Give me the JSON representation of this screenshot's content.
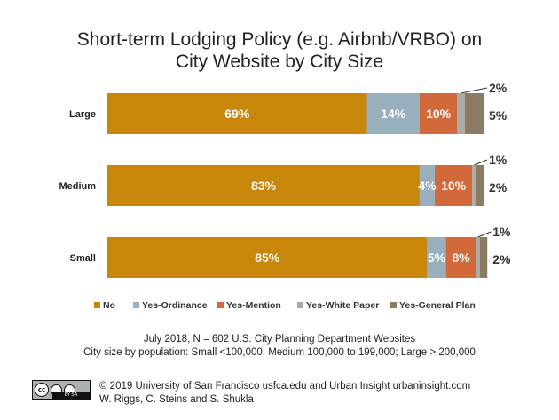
{
  "chart_data": {
    "type": "bar",
    "orientation": "horizontal",
    "stacked": true,
    "title_lines": [
      "Short-term Lodging Policy (e.g. Airbnb/VRBO) on",
      "City Website by City Size"
    ],
    "categories": [
      "Large",
      "Medium",
      "Small"
    ],
    "series": [
      {
        "name": "No",
        "color": "#c8860a",
        "values": [
          69,
          83,
          85
        ],
        "labels": [
          "69%",
          "83%",
          "85%"
        ]
      },
      {
        "name": "Yes-Ordinance",
        "color": "#98b0be",
        "values": [
          14,
          4,
          5
        ],
        "labels": [
          "14%",
          "4%",
          "5%"
        ]
      },
      {
        "name": "Yes-Mention",
        "color": "#d2693a",
        "values": [
          10,
          10,
          8
        ],
        "labels": [
          "10%",
          "10%",
          "8%"
        ]
      },
      {
        "name": "Yes-White Paper",
        "color": "#a8aea6",
        "values": [
          2,
          1,
          1
        ],
        "labels": [
          "2%",
          "1%",
          "1%"
        ]
      },
      {
        "name": "Yes-General Plan",
        "color": "#8c7b62",
        "values": [
          5,
          2,
          2
        ],
        "labels": [
          "5%",
          "2%",
          "2%"
        ]
      }
    ],
    "xlim": [
      0,
      100
    ],
    "grid": false,
    "legend_position": "bottom"
  },
  "notes": [
    "July 2018, N = 602 U.S. City Planning Department Websites",
    "City size by population:  Small <100,000; Medium 100,000 to 199,000; Large > 200,000"
  ],
  "license": {
    "badge": "BY  SA",
    "icon": "creative-commons-icon",
    "symbol": "cc"
  },
  "credits": [
    "© 2019 University of San Francisco usfca.edu and Urban Insight urbaninsight.com",
    "W. Riggs, C. Steins and S. Shukla"
  ]
}
